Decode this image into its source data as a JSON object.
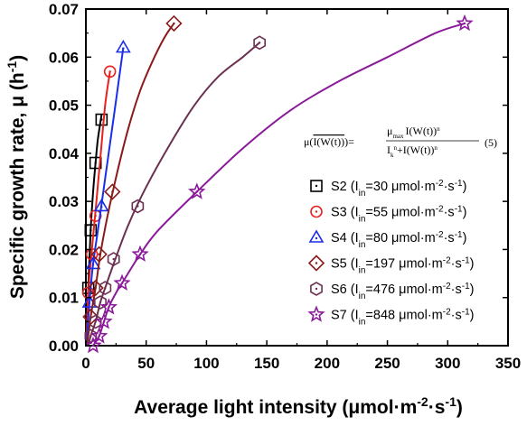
{
  "chart_data": {
    "type": "scatter",
    "title": "",
    "xlabel": "Average light intensity (μmol·m",
    "xlabel_sup": "-2",
    "xlabel_mid": "·s",
    "xlabel_sup2": "-1",
    "xlabel_end": ")",
    "ylabel": "Specific growth rate, μ (h",
    "ylabel_sup": "-1",
    "ylabel_end": ")",
    "xlim": [
      0,
      350
    ],
    "ylim": [
      0,
      0.07
    ],
    "xticks": [
      "0",
      "50",
      "100",
      "150",
      "200",
      "250",
      "300",
      "350"
    ],
    "yticks": [
      "0.00",
      "0.01",
      "0.02",
      "0.03",
      "0.04",
      "0.05",
      "0.06",
      "0.07"
    ],
    "legend_position": "right",
    "equation": {
      "lhs": "μ(",
      "lhs_arg": "I(W(t))",
      "lhs_close": ")=",
      "num_coef": "μ",
      "num_coef_sub": "max",
      "num_arg": "I(W(t))",
      "num_exp": "n",
      "den_term": "I",
      "den_term_sub": "k",
      "den_term_sup": "n",
      "den_plus": "+",
      "den_arg": "I(W(t))",
      "den_exp": "n",
      "number": "(5)"
    },
    "series": [
      {
        "name": "S2",
        "label_prefix": "S2 (I",
        "label_sub": "in",
        "label_value": "=30 μmol·m",
        "label_sup1": "-2",
        "label_mid": "·s",
        "label_sup2": "-1",
        "label_end": ")",
        "marker": "square",
        "color": "#000000",
        "points": [
          [
            2,
            0.012
          ],
          [
            4,
            0.024
          ],
          [
            8,
            0.038
          ],
          [
            13,
            0.047
          ]
        ],
        "curve": [
          [
            0.5,
            0.0
          ],
          [
            2,
            0.012
          ],
          [
            4,
            0.024
          ],
          [
            6,
            0.032
          ],
          [
            8,
            0.038
          ],
          [
            10,
            0.043
          ],
          [
            13,
            0.048
          ]
        ]
      },
      {
        "name": "S3",
        "label_prefix": "S3 (I",
        "label_sub": "in",
        "label_value": "=55 μmol·m",
        "label_sup1": "-2",
        "label_mid": "·s",
        "label_sup2": "-1",
        "label_end": ")",
        "marker": "circle",
        "color": "#e8201e",
        "points": [
          [
            2,
            0.011
          ],
          [
            5,
            0.019
          ],
          [
            8,
            0.027
          ],
          [
            20,
            0.057
          ]
        ],
        "curve": [
          [
            0.5,
            0.0
          ],
          [
            2,
            0.011
          ],
          [
            5,
            0.02
          ],
          [
            8,
            0.028
          ],
          [
            12,
            0.039
          ],
          [
            16,
            0.05
          ],
          [
            20,
            0.057
          ]
        ]
      },
      {
        "name": "S4",
        "label_prefix": "S4 (I",
        "label_sub": "in",
        "label_value": "=80 μmol·m",
        "label_sup1": "-2",
        "label_mid": "·s",
        "label_sup2": "-1",
        "label_end": ")",
        "marker": "triangle",
        "color": "#1a2ee8",
        "points": [
          [
            3,
            0.009
          ],
          [
            6,
            0.017
          ],
          [
            13,
            0.029
          ],
          [
            31,
            0.062
          ]
        ],
        "curve": [
          [
            0.5,
            0.0
          ],
          [
            3,
            0.009
          ],
          [
            6,
            0.017
          ],
          [
            10,
            0.024
          ],
          [
            15,
            0.033
          ],
          [
            20,
            0.042
          ],
          [
            25,
            0.051
          ],
          [
            31,
            0.062
          ]
        ]
      },
      {
        "name": "S5",
        "label_prefix": "S5 (I",
        "label_sub": "in",
        "label_value": "=197 μmol·m",
        "label_sup1": "-2",
        "label_mid": "·s",
        "label_sup2": "-1",
        "label_end": ")",
        "marker": "diamond",
        "color": "#8b1a1a",
        "points": [
          [
            4,
            0.006
          ],
          [
            8,
            0.012
          ],
          [
            11,
            0.019
          ],
          [
            22,
            0.032
          ],
          [
            73,
            0.067
          ]
        ],
        "curve": [
          [
            1,
            0.0
          ],
          [
            4,
            0.006
          ],
          [
            8,
            0.012
          ],
          [
            12,
            0.019
          ],
          [
            18,
            0.027
          ],
          [
            25,
            0.035
          ],
          [
            35,
            0.045
          ],
          [
            45,
            0.053
          ],
          [
            55,
            0.059
          ],
          [
            65,
            0.064
          ],
          [
            73,
            0.067
          ]
        ]
      },
      {
        "name": "S6",
        "label_prefix": "S6 (I",
        "label_sub": "in",
        "label_value": "=476 μmol·m",
        "label_sup1": "-2",
        "label_mid": "·s",
        "label_sup2": "-1",
        "label_end": ")",
        "marker": "hexagon",
        "color": "#6b3050",
        "points": [
          [
            4,
            0.002
          ],
          [
            8,
            0.005
          ],
          [
            12,
            0.009
          ],
          [
            16,
            0.012
          ],
          [
            23,
            0.018
          ],
          [
            43,
            0.029
          ],
          [
            144,
            0.063
          ]
        ],
        "curve": [
          [
            2,
            0.0
          ],
          [
            4,
            0.002
          ],
          [
            8,
            0.005
          ],
          [
            12,
            0.009
          ],
          [
            16,
            0.012
          ],
          [
            23,
            0.017
          ],
          [
            35,
            0.025
          ],
          [
            50,
            0.033
          ],
          [
            70,
            0.042
          ],
          [
            90,
            0.05
          ],
          [
            110,
            0.056
          ],
          [
            130,
            0.06
          ],
          [
            144,
            0.063
          ]
        ]
      },
      {
        "name": "S7",
        "label_prefix": "S7 (I",
        "label_sub": "in",
        "label_value": "=848 μmol·m",
        "label_sup1": "-2",
        "label_mid": "·s",
        "label_sup2": "-1",
        "label_end": ")",
        "marker": "star",
        "color": "#8a1a9a",
        "points": [
          [
            6,
            0.0
          ],
          [
            11,
            0.002
          ],
          [
            15,
            0.005
          ],
          [
            19,
            0.008
          ],
          [
            30,
            0.013
          ],
          [
            45,
            0.019
          ],
          [
            92,
            0.032
          ],
          [
            314,
            0.067
          ]
        ],
        "curve": [
          [
            6,
            0.0
          ],
          [
            11,
            0.002
          ],
          [
            15,
            0.005
          ],
          [
            19,
            0.008
          ],
          [
            25,
            0.011
          ],
          [
            30,
            0.013
          ],
          [
            45,
            0.019
          ],
          [
            60,
            0.024
          ],
          [
            92,
            0.032
          ],
          [
            130,
            0.041
          ],
          [
            170,
            0.049
          ],
          [
            210,
            0.055
          ],
          [
            250,
            0.06
          ],
          [
            290,
            0.065
          ],
          [
            314,
            0.067
          ]
        ]
      }
    ]
  }
}
